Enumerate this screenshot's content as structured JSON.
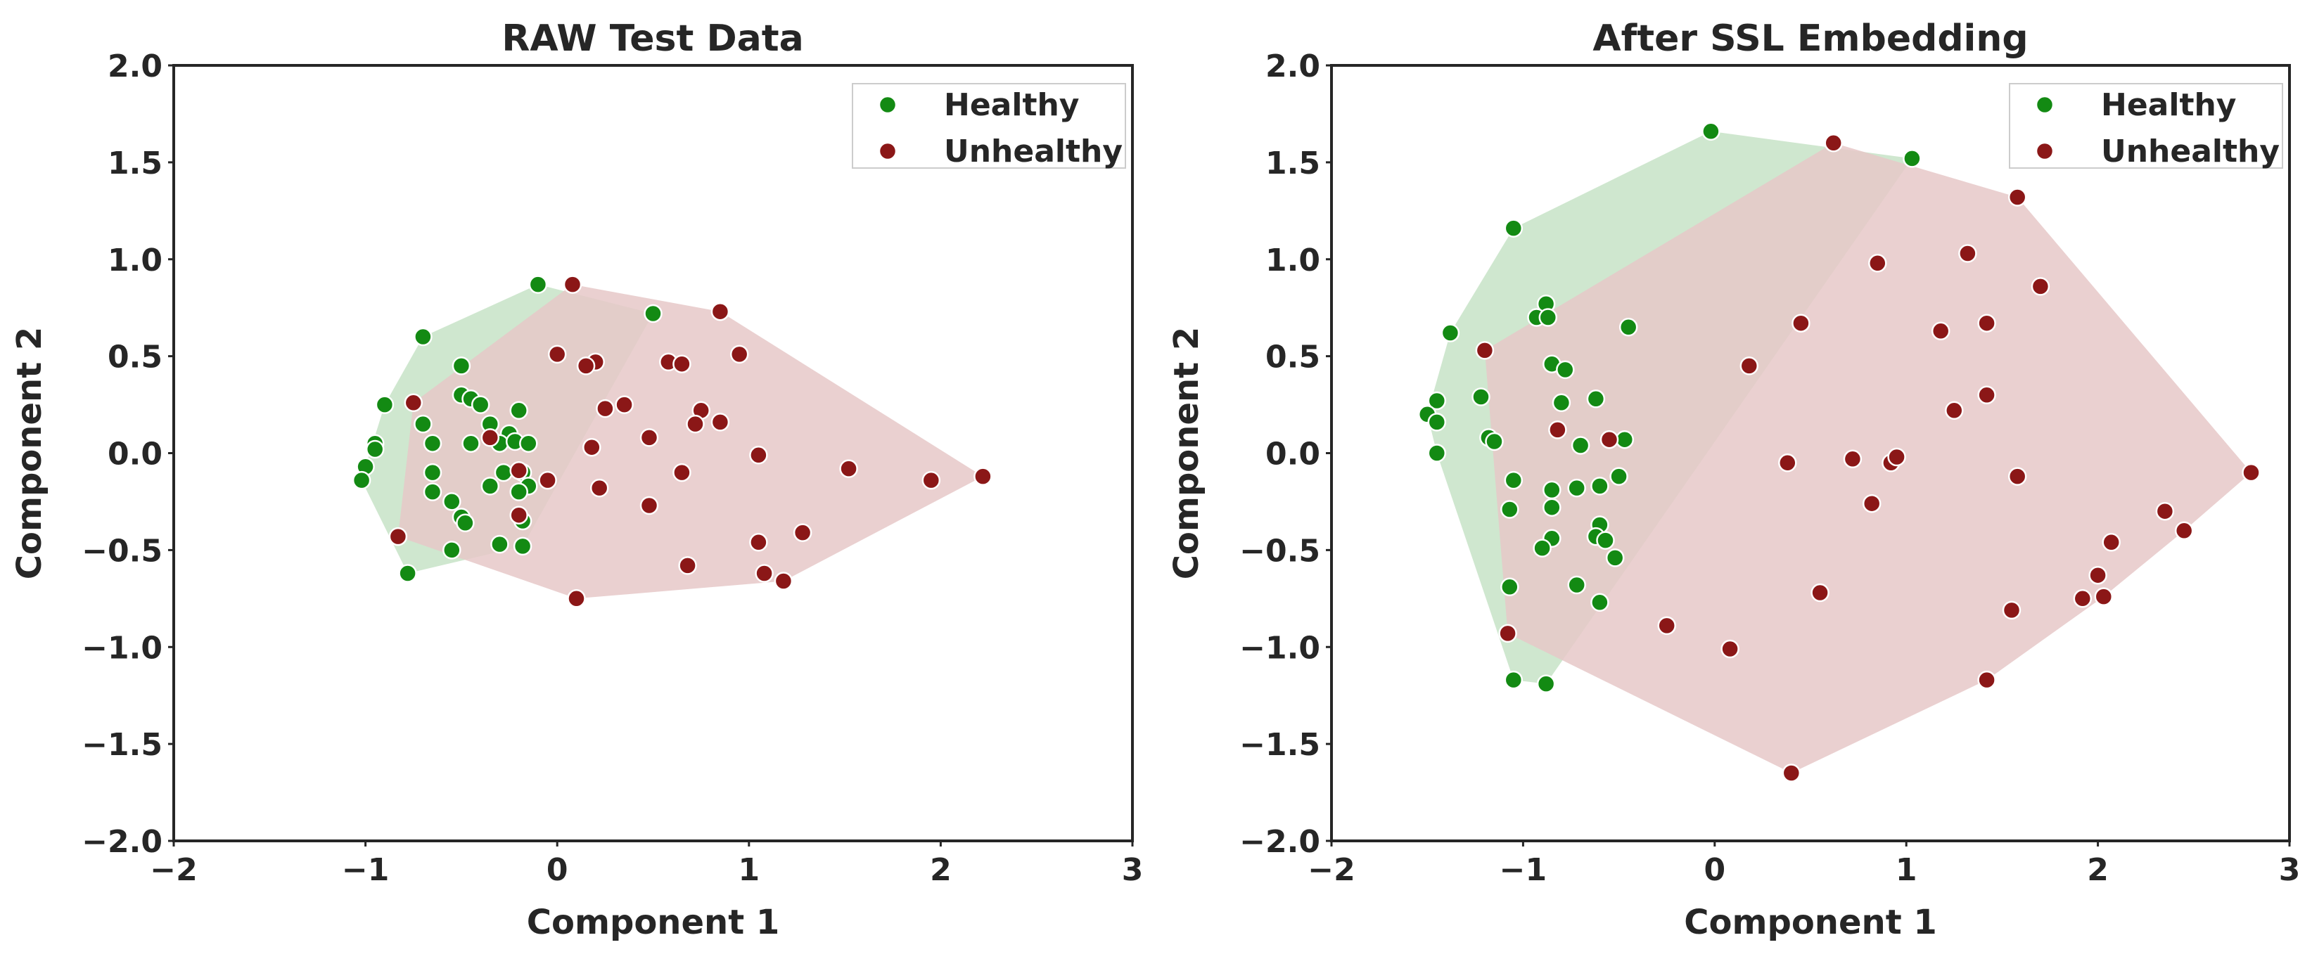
{
  "colors": {
    "healthy": "#138a13",
    "unhealthy": "#8b1717",
    "healthy_fill": "#cfe7cf",
    "unhealthy_fill": "#e6c8c8",
    "overlap_fill": "#b9b49a",
    "axes": "#262626",
    "marker_edge": "#ffffff"
  },
  "chart_data": [
    {
      "type": "scatter",
      "title": "RAW Test Data",
      "xlabel": "Component 1",
      "ylabel": "Component 2",
      "xlim": [
        -2,
        3
      ],
      "ylim": [
        -2,
        2
      ],
      "xticks": [
        "−2",
        "−1",
        "0",
        "1",
        "2",
        "3"
      ],
      "yticks": [
        "2.0",
        "1.5",
        "1.0",
        "0.5",
        "0.0",
        "−0.5",
        "−1.0",
        "−1.5",
        "−2.0"
      ],
      "grid": false,
      "legend": {
        "placement": "top-right",
        "entries": [
          "Healthy",
          "Unhealthy"
        ]
      },
      "series": [
        {
          "name": "Healthy",
          "hull": true,
          "points": [
            [
              -0.7,
              0.6
            ],
            [
              -0.5,
              0.45
            ],
            [
              -0.1,
              0.87
            ],
            [
              0.5,
              0.72
            ],
            [
              -0.9,
              0.25
            ],
            [
              -0.7,
              0.15
            ],
            [
              -0.5,
              0.3
            ],
            [
              -0.45,
              0.28
            ],
            [
              -0.4,
              0.25
            ],
            [
              -0.35,
              0.15
            ],
            [
              -0.2,
              0.22
            ],
            [
              -0.25,
              0.1
            ],
            [
              -0.65,
              0.05
            ],
            [
              -0.45,
              0.05
            ],
            [
              -0.3,
              0.05
            ],
            [
              -0.22,
              0.06
            ],
            [
              -0.15,
              0.05
            ],
            [
              -0.95,
              0.05
            ],
            [
              -0.95,
              0.02
            ],
            [
              -1.0,
              -0.07
            ],
            [
              -1.02,
              -0.14
            ],
            [
              -0.65,
              -0.1
            ],
            [
              -0.65,
              -0.2
            ],
            [
              -0.55,
              -0.25
            ],
            [
              -0.35,
              -0.17
            ],
            [
              -0.28,
              -0.1
            ],
            [
              -0.18,
              -0.1
            ],
            [
              -0.15,
              -0.17
            ],
            [
              -0.2,
              -0.2
            ],
            [
              -0.5,
              -0.33
            ],
            [
              -0.48,
              -0.36
            ],
            [
              -0.55,
              -0.5
            ],
            [
              -0.3,
              -0.47
            ],
            [
              -0.18,
              -0.48
            ],
            [
              -0.18,
              -0.35
            ],
            [
              -0.78,
              -0.62
            ]
          ]
        },
        {
          "name": "Unhealthy",
          "hull": true,
          "points": [
            [
              0.08,
              0.87
            ],
            [
              0.85,
              0.73
            ],
            [
              0.95,
              0.51
            ],
            [
              0.0,
              0.51
            ],
            [
              0.2,
              0.47
            ],
            [
              0.15,
              0.45
            ],
            [
              0.58,
              0.47
            ],
            [
              0.65,
              0.46
            ],
            [
              0.75,
              0.22
            ],
            [
              0.72,
              0.15
            ],
            [
              0.85,
              0.16
            ],
            [
              0.35,
              0.25
            ],
            [
              0.25,
              0.23
            ],
            [
              -0.35,
              0.08
            ],
            [
              0.48,
              0.08
            ],
            [
              0.18,
              0.03
            ],
            [
              1.05,
              -0.01
            ],
            [
              1.52,
              -0.08
            ],
            [
              1.95,
              -0.14
            ],
            [
              2.22,
              -0.12
            ],
            [
              -0.2,
              -0.09
            ],
            [
              -0.05,
              -0.14
            ],
            [
              0.22,
              -0.18
            ],
            [
              0.65,
              -0.1
            ],
            [
              0.48,
              -0.27
            ],
            [
              -0.2,
              -0.32
            ],
            [
              -0.75,
              0.26
            ],
            [
              -0.83,
              -0.43
            ],
            [
              1.05,
              -0.46
            ],
            [
              1.28,
              -0.41
            ],
            [
              0.68,
              -0.58
            ],
            [
              1.08,
              -0.62
            ],
            [
              1.18,
              -0.66
            ],
            [
              0.1,
              -0.75
            ]
          ]
        }
      ]
    },
    {
      "type": "scatter",
      "title": "After SSL Embedding",
      "xlabel": "Component 1",
      "ylabel": "Component 2",
      "xlim": [
        -2,
        3
      ],
      "ylim": [
        -2,
        2
      ],
      "xticks": [
        "−2",
        "−1",
        "0",
        "1",
        "2",
        "3"
      ],
      "yticks": [
        "2.0",
        "1.5",
        "1.0",
        "0.5",
        "0.0",
        "−0.5",
        "−1.0",
        "−1.5",
        "−2.0"
      ],
      "grid": false,
      "legend": {
        "placement": "top-right",
        "entries": [
          "Healthy",
          "Unhealthy"
        ]
      },
      "series": [
        {
          "name": "Healthy",
          "hull": true,
          "points": [
            [
              -0.02,
              1.66
            ],
            [
              1.03,
              1.52
            ],
            [
              -1.05,
              1.16
            ],
            [
              -0.88,
              0.77
            ],
            [
              -0.93,
              0.7
            ],
            [
              -0.87,
              0.7
            ],
            [
              -0.45,
              0.65
            ],
            [
              -1.38,
              0.62
            ],
            [
              -0.85,
              0.46
            ],
            [
              -0.78,
              0.43
            ],
            [
              -1.22,
              0.29
            ],
            [
              -0.62,
              0.28
            ],
            [
              -1.45,
              0.27
            ],
            [
              -0.8,
              0.26
            ],
            [
              -1.5,
              0.2
            ],
            [
              -1.45,
              0.16
            ],
            [
              -1.18,
              0.08
            ],
            [
              -1.15,
              0.06
            ],
            [
              -0.47,
              0.07
            ],
            [
              -0.7,
              0.04
            ],
            [
              -1.45,
              0.0
            ],
            [
              -0.5,
              -0.12
            ],
            [
              -1.05,
              -0.14
            ],
            [
              -0.6,
              -0.17
            ],
            [
              -0.85,
              -0.19
            ],
            [
              -0.72,
              -0.18
            ],
            [
              -1.07,
              -0.29
            ],
            [
              -0.85,
              -0.28
            ],
            [
              -0.6,
              -0.37
            ],
            [
              -0.62,
              -0.43
            ],
            [
              -0.57,
              -0.45
            ],
            [
              -0.85,
              -0.44
            ],
            [
              -0.9,
              -0.49
            ],
            [
              -0.52,
              -0.54
            ],
            [
              -1.07,
              -0.69
            ],
            [
              -0.72,
              -0.68
            ],
            [
              -0.6,
              -0.77
            ],
            [
              -1.05,
              -1.17
            ],
            [
              -0.88,
              -1.19
            ]
          ]
        },
        {
          "name": "Unhealthy",
          "hull": true,
          "points": [
            [
              0.62,
              1.6
            ],
            [
              1.58,
              1.32
            ],
            [
              1.32,
              1.03
            ],
            [
              0.85,
              0.98
            ],
            [
              1.7,
              0.86
            ],
            [
              0.45,
              0.67
            ],
            [
              1.42,
              0.67
            ],
            [
              1.18,
              0.63
            ],
            [
              -1.2,
              0.53
            ],
            [
              0.18,
              0.45
            ],
            [
              1.42,
              0.3
            ],
            [
              1.25,
              0.22
            ],
            [
              -0.82,
              0.12
            ],
            [
              -0.55,
              0.07
            ],
            [
              0.38,
              -0.05
            ],
            [
              0.72,
              -0.03
            ],
            [
              0.92,
              -0.05
            ],
            [
              0.95,
              -0.02
            ],
            [
              1.58,
              -0.12
            ],
            [
              2.8,
              -0.1
            ],
            [
              0.82,
              -0.26
            ],
            [
              2.35,
              -0.3
            ],
            [
              2.45,
              -0.4
            ],
            [
              2.07,
              -0.46
            ],
            [
              2.0,
              -0.63
            ],
            [
              0.55,
              -0.72
            ],
            [
              1.92,
              -0.75
            ],
            [
              2.03,
              -0.74
            ],
            [
              1.55,
              -0.81
            ],
            [
              -1.08,
              -0.93
            ],
            [
              -0.25,
              -0.89
            ],
            [
              0.08,
              -1.01
            ],
            [
              1.42,
              -1.17
            ],
            [
              0.4,
              -1.65
            ]
          ]
        }
      ]
    }
  ]
}
